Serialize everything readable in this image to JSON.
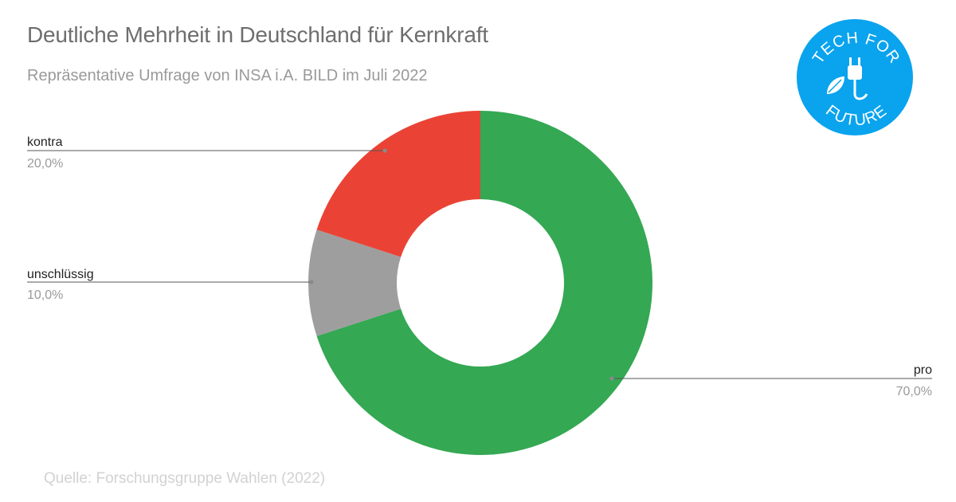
{
  "title": "Deutliche Mehrheit in Deutschland für Kernkraft",
  "subtitle": "Repräsentative Umfrage von INSA i.A. BILD im Juli 2022",
  "source": "Quelle: Forschungsgruppe Wahlen (2022)",
  "logo": {
    "text_top": "TECH FOR",
    "text_bottom": "FUTURE",
    "color": "#0aa3ee",
    "icon": "plug-leaf-icon"
  },
  "chart_data": {
    "type": "pie",
    "donut": true,
    "start_angle_deg": 0,
    "direction": "clockwise",
    "slices": [
      {
        "label": "pro",
        "value": 70.0,
        "display": "70,0%",
        "color": "#34a853"
      },
      {
        "label": "kontra",
        "value": 20.0,
        "display": "20,0%",
        "color": "#ea4335"
      },
      {
        "label": "unschlüssig",
        "value": 10.0,
        "display": "10,0%",
        "color": "#9e9e9e"
      }
    ],
    "legend": "none",
    "leader_labels": true
  }
}
